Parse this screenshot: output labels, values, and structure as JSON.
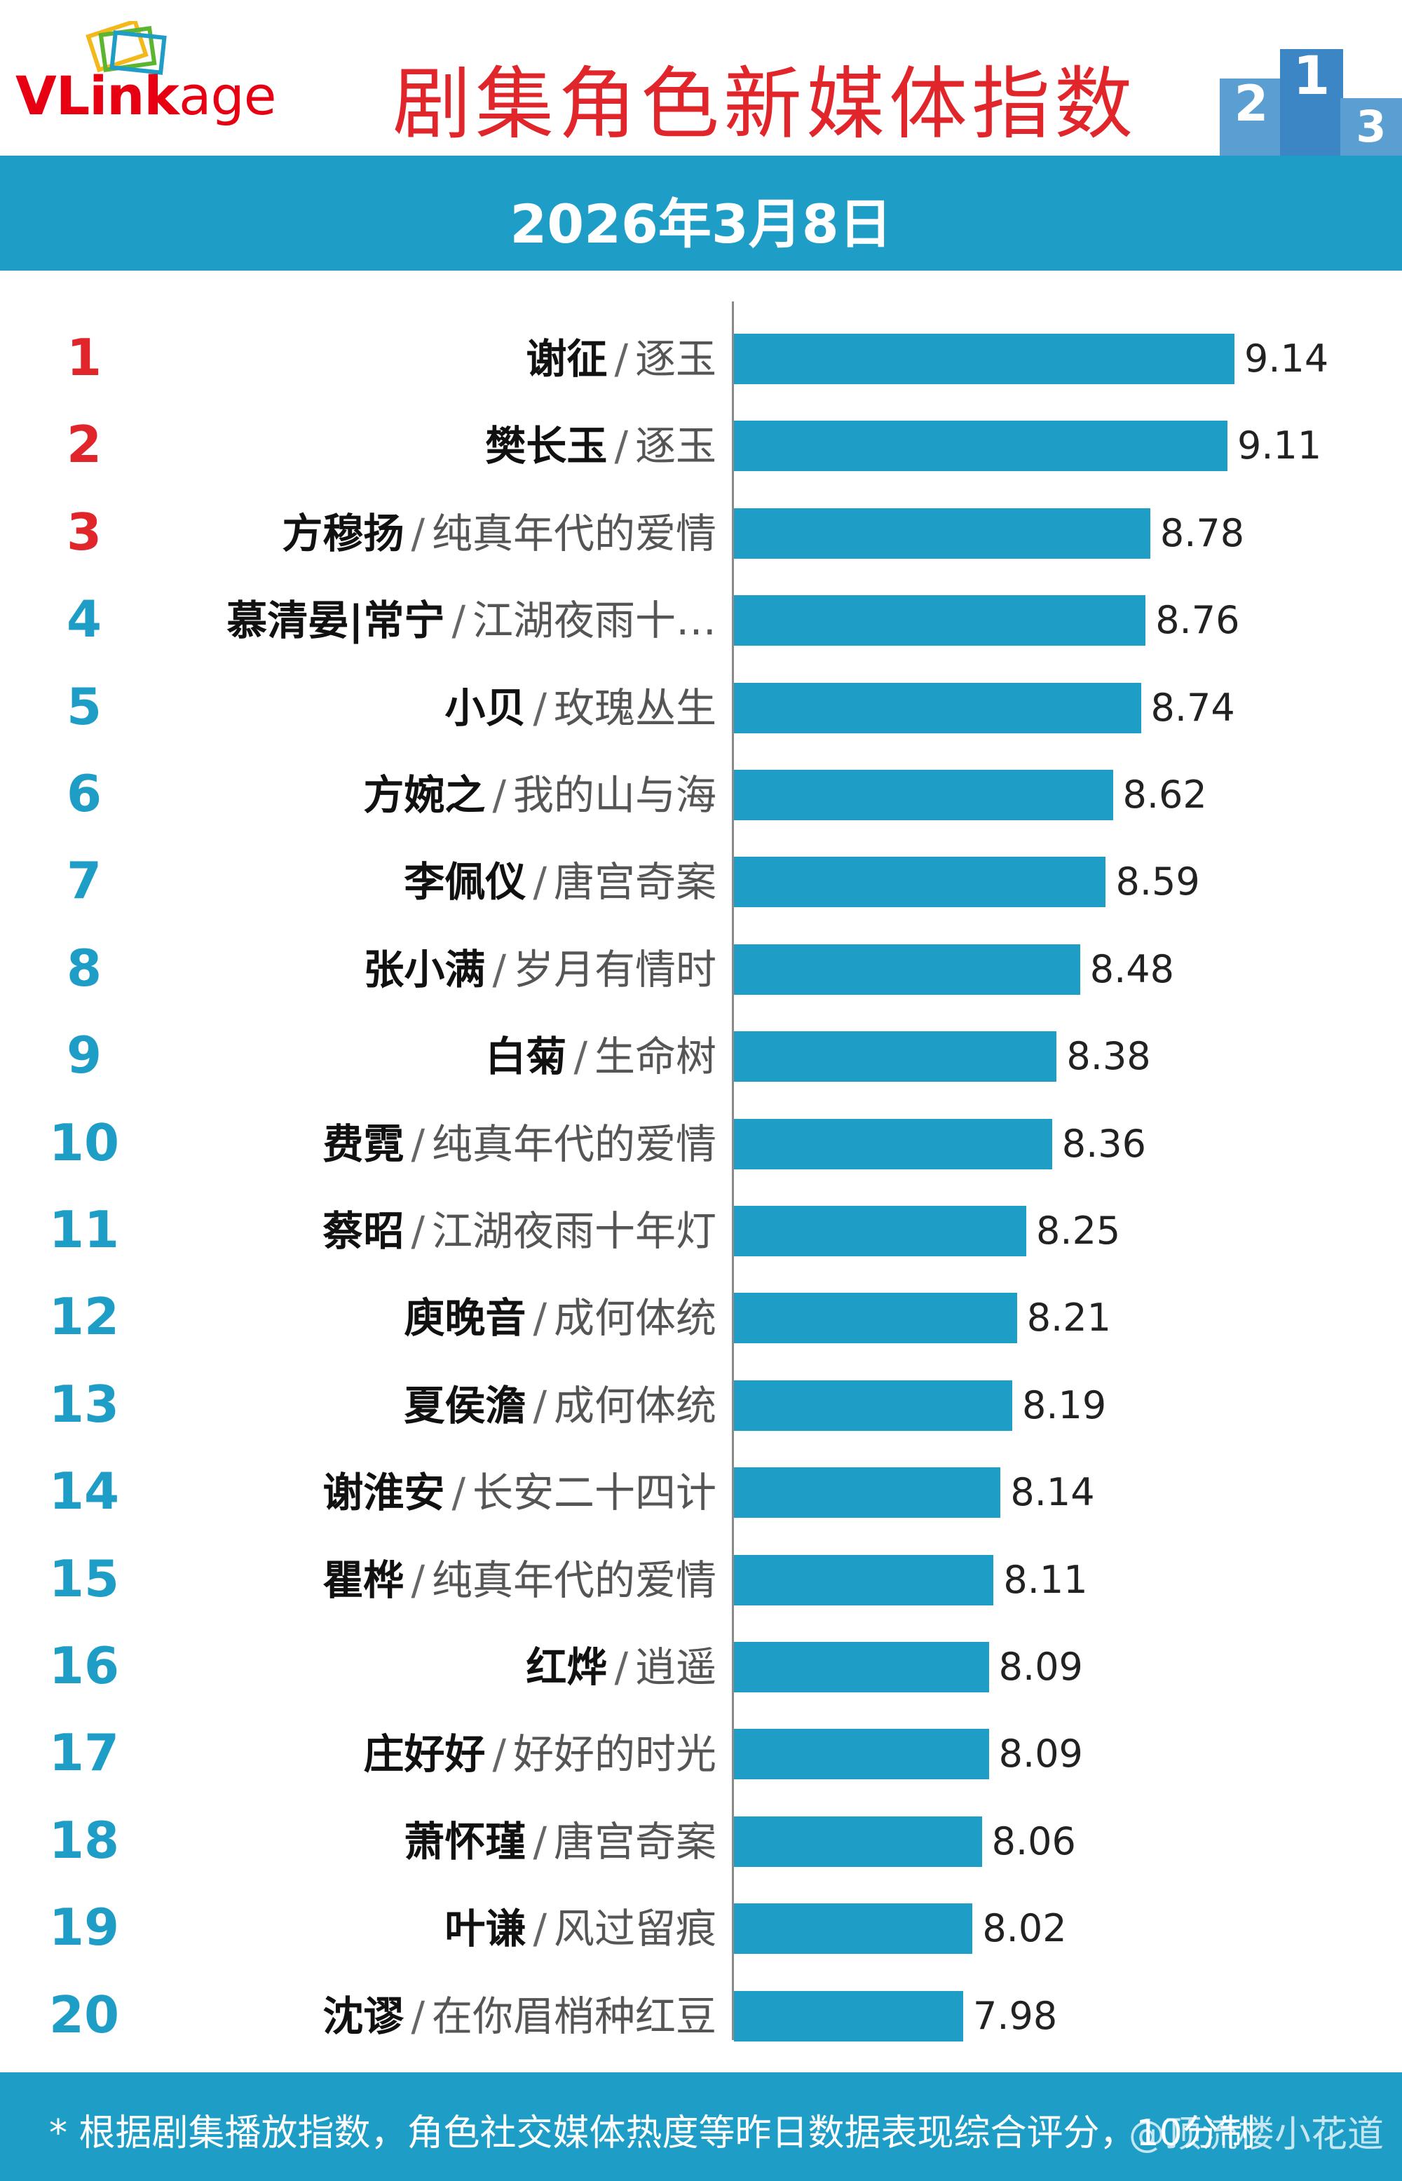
{
  "header": {
    "logo_text_v": "V",
    "logo_text_link": "Link",
    "logo_text_age": "age",
    "title": "剧集角色新媒体指数",
    "podium_labels": [
      "2",
      "1",
      "3"
    ]
  },
  "date": "2026年3月8日",
  "colors": {
    "accent": "#1e9dc7",
    "title_red": "#e0262b",
    "rank_red": "#e0262b"
  },
  "chart_data": {
    "type": "bar",
    "orientation": "horizontal",
    "title": "剧集角色新媒体指数",
    "subtitle": "2026年3月8日",
    "xlim": [
      7,
      9.14
    ],
    "rows": [
      {
        "rank": "1",
        "name": "谢征",
        "show": "逐玉",
        "value": 9.14
      },
      {
        "rank": "2",
        "name": "樊长玉",
        "show": "逐玉",
        "value": 9.11
      },
      {
        "rank": "3",
        "name": "方穆扬",
        "show": "纯真年代的爱情",
        "value": 8.78
      },
      {
        "rank": "4",
        "name": "慕清晏|常宁",
        "show": "江湖夜雨十…",
        "value": 8.76
      },
      {
        "rank": "5",
        "name": "小贝",
        "show": "玫瑰丛生",
        "value": 8.74
      },
      {
        "rank": "6",
        "name": "方婉之",
        "show": "我的山与海",
        "value": 8.62
      },
      {
        "rank": "7",
        "name": "李佩仪",
        "show": "唐宫奇案",
        "value": 8.59
      },
      {
        "rank": "8",
        "name": "张小满",
        "show": "岁月有情时",
        "value": 8.48
      },
      {
        "rank": "9",
        "name": "白菊",
        "show": "生命树",
        "value": 8.38
      },
      {
        "rank": "10",
        "name": "费霓",
        "show": "纯真年代的爱情",
        "value": 8.36
      },
      {
        "rank": "11",
        "name": "蔡昭",
        "show": "江湖夜雨十年灯",
        "value": 8.25
      },
      {
        "rank": "12",
        "name": "庾晚音",
        "show": "成何体统",
        "value": 8.21
      },
      {
        "rank": "13",
        "name": "夏侯澹",
        "show": "成何体统",
        "value": 8.19
      },
      {
        "rank": "14",
        "name": "谢淮安",
        "show": "长安二十四计",
        "value": 8.14
      },
      {
        "rank": "15",
        "name": "瞿桦",
        "show": "纯真年代的爱情",
        "value": 8.11
      },
      {
        "rank": "16",
        "name": "红烨",
        "show": "逍遥",
        "value": 8.09
      },
      {
        "rank": "17",
        "name": "庄好好",
        "show": "好好的时光",
        "value": 8.09
      },
      {
        "rank": "18",
        "name": "萧怀瑾",
        "show": "唐宫奇案",
        "value": 8.06
      },
      {
        "rank": "19",
        "name": "叶谦",
        "show": "风过留痕",
        "value": 8.02
      },
      {
        "rank": "20",
        "name": "沈谬",
        "show": "在你眉梢种红豆",
        "value": 7.98
      }
    ]
  },
  "footer": {
    "note": "* 根据剧集播放指数，角色社交媒体热度等昨日数据表现综合评分，10分制",
    "watermark": "@顶流楼小花道"
  }
}
